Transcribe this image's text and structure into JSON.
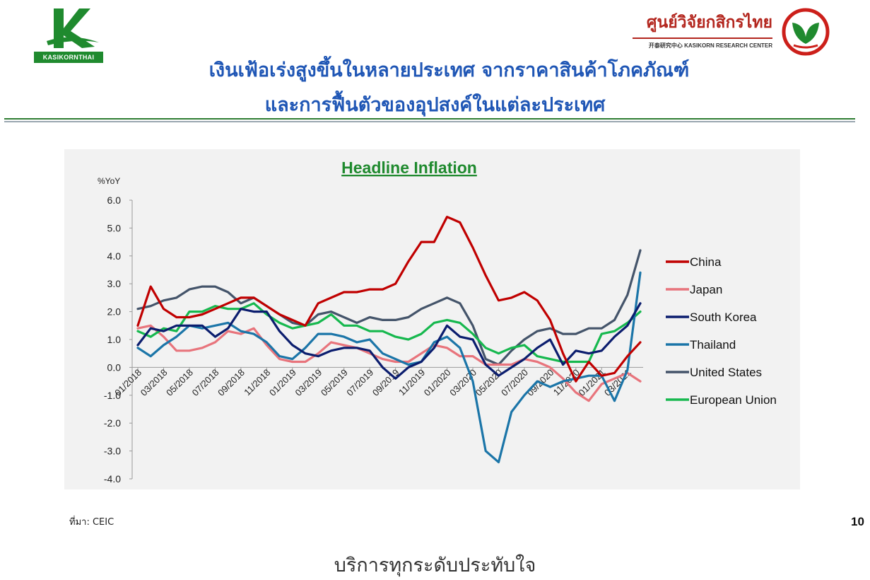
{
  "header": {
    "brand_left": "KASIKORNTHAI",
    "brand_right_thai": "ศูนย์วิจัยกสิกรไทย",
    "brand_right_en": "开泰研究中心 KASIKORN RESEARCH CENTER",
    "title_line1": "เงินเฟ้อเร่งสูงขึ้นในหลายประเทศ จากราคาสินค้าโภคภัณฑ์",
    "title_line2": "และการฟื้นตัวของอุปสงค์ในแต่ละประเทศ",
    "colors": {
      "title": "#1f56b5",
      "brand_green": "#1f8a2e",
      "brand_red": "#b3261e"
    }
  },
  "footer": {
    "source": "ที่มา: CEIC",
    "page_number": "10",
    "tagline": "บริการทุกระดับประทับใจ"
  },
  "chart_data": {
    "type": "line",
    "title": "Headline Inflation",
    "ylabel": "%YoY",
    "xlabel": "",
    "ylim": [
      -4.0,
      6.0
    ],
    "y_ticks": [
      "6.0",
      "5.0",
      "4.0",
      "3.0",
      "2.0",
      "1.0",
      "0.0",
      "-1.0",
      "-2.0",
      "-3.0",
      "-4.0"
    ],
    "x_tick_labels": [
      "01/2018",
      "03/2018",
      "05/2018",
      "07/2018",
      "09/2018",
      "11/2018",
      "01/2019",
      "03/2019",
      "05/2019",
      "07/2019",
      "09/2019",
      "11/2019",
      "01/2020",
      "03/2020",
      "05/2020",
      "07/2020",
      "09/2020",
      "11/2020",
      "01/2021",
      "03/2021"
    ],
    "x": [
      "01/2018",
      "02/2018",
      "03/2018",
      "04/2018",
      "05/2018",
      "06/2018",
      "07/2018",
      "08/2018",
      "09/2018",
      "10/2018",
      "11/2018",
      "12/2018",
      "01/2019",
      "02/2019",
      "03/2019",
      "04/2019",
      "05/2019",
      "06/2019",
      "07/2019",
      "08/2019",
      "09/2019",
      "10/2019",
      "11/2019",
      "12/2019",
      "01/2020",
      "02/2020",
      "03/2020",
      "04/2020",
      "05/2020",
      "06/2020",
      "07/2020",
      "08/2020",
      "09/2020",
      "10/2020",
      "11/2020",
      "12/2020",
      "01/2021",
      "02/2021",
      "03/2021",
      "04/2021"
    ],
    "grid": false,
    "legend_position": "right",
    "series": [
      {
        "name": "China",
        "color": "#c00000",
        "values": [
          1.5,
          2.9,
          2.1,
          1.8,
          1.8,
          1.9,
          2.1,
          2.3,
          2.5,
          2.5,
          2.2,
          1.9,
          1.7,
          1.5,
          2.3,
          2.5,
          2.7,
          2.7,
          2.8,
          2.8,
          3.0,
          3.8,
          4.5,
          4.5,
          5.4,
          5.2,
          4.3,
          3.3,
          2.4,
          2.5,
          2.7,
          2.4,
          1.7,
          0.5,
          -0.5,
          0.2,
          -0.3,
          -0.2,
          0.4,
          0.9
        ]
      },
      {
        "name": "Japan",
        "color": "#e8747c",
        "values": [
          1.4,
          1.5,
          1.1,
          0.6,
          0.6,
          0.7,
          0.9,
          1.3,
          1.2,
          1.4,
          0.8,
          0.3,
          0.2,
          0.2,
          0.5,
          0.9,
          0.8,
          0.7,
          0.5,
          0.3,
          0.2,
          0.2,
          0.5,
          0.8,
          0.7,
          0.4,
          0.4,
          0.1,
          0.1,
          0.1,
          0.3,
          0.2,
          0.0,
          -0.4,
          -0.9,
          -1.2,
          -0.6,
          -0.4,
          -0.2,
          -0.5
        ]
      },
      {
        "name": "South Korea",
        "color": "#0b1d6e",
        "values": [
          0.8,
          1.4,
          1.3,
          1.5,
          1.5,
          1.5,
          1.1,
          1.4,
          2.1,
          2.0,
          2.0,
          1.3,
          0.8,
          0.5,
          0.4,
          0.6,
          0.7,
          0.7,
          0.6,
          0.0,
          -0.4,
          0.0,
          0.2,
          0.7,
          1.5,
          1.1,
          1.0,
          0.1,
          -0.3,
          0.0,
          0.3,
          0.7,
          1.0,
          0.1,
          0.6,
          0.5,
          0.6,
          1.1,
          1.5,
          2.3
        ]
      },
      {
        "name": "Thailand",
        "color": "#1b75a8",
        "values": [
          0.7,
          0.4,
          0.8,
          1.1,
          1.5,
          1.4,
          1.5,
          1.6,
          1.3,
          1.2,
          0.9,
          0.4,
          0.3,
          0.7,
          1.2,
          1.2,
          1.1,
          0.9,
          1.0,
          0.5,
          0.3,
          0.1,
          0.2,
          0.9,
          1.1,
          0.7,
          -0.5,
          -3.0,
          -3.4,
          -1.6,
          -1.0,
          -0.5,
          -0.7,
          -0.5,
          -0.4,
          -0.3,
          -0.3,
          -1.2,
          -0.1,
          3.4
        ]
      },
      {
        "name": "United States",
        "color": "#44546a",
        "values": [
          2.1,
          2.2,
          2.4,
          2.5,
          2.8,
          2.9,
          2.9,
          2.7,
          2.3,
          2.5,
          2.2,
          1.9,
          1.6,
          1.5,
          1.9,
          2.0,
          1.8,
          1.6,
          1.8,
          1.7,
          1.7,
          1.8,
          2.1,
          2.3,
          2.5,
          2.3,
          1.5,
          0.3,
          0.1,
          0.6,
          1.0,
          1.3,
          1.4,
          1.2,
          1.2,
          1.4,
          1.4,
          1.7,
          2.6,
          4.2
        ]
      },
      {
        "name": "European Union",
        "color": "#16b84e",
        "values": [
          1.3,
          1.1,
          1.4,
          1.3,
          2.0,
          2.0,
          2.2,
          2.1,
          2.1,
          2.3,
          1.9,
          1.6,
          1.4,
          1.5,
          1.6,
          1.9,
          1.5,
          1.5,
          1.3,
          1.3,
          1.1,
          1.0,
          1.2,
          1.6,
          1.7,
          1.6,
          1.2,
          0.7,
          0.5,
          0.7,
          0.8,
          0.4,
          0.3,
          0.2,
          0.2,
          0.2,
          1.2,
          1.3,
          1.6,
          2.0
        ]
      }
    ]
  }
}
